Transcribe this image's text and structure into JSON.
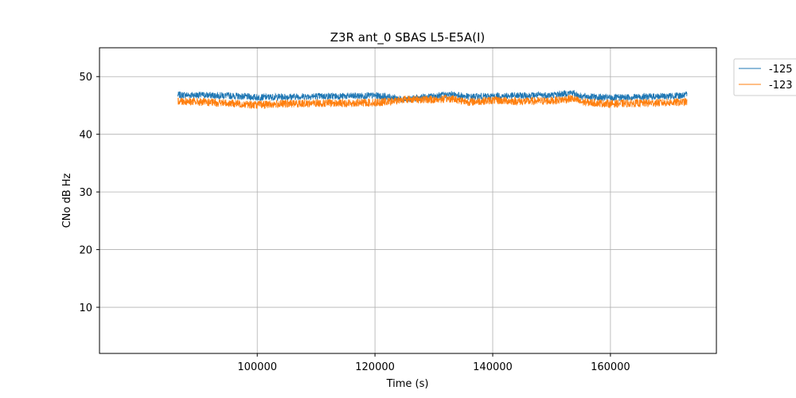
{
  "chart_data": {
    "type": "line",
    "title": "Z3R ant_0 SBAS L5-E5A(I)",
    "xlabel": "Time (s)",
    "ylabel": "CNo dB Hz",
    "xlim": [
      73200,
      178000
    ],
    "ylim": [
      2,
      55
    ],
    "x_ticks": [
      100000,
      120000,
      140000,
      160000
    ],
    "y_ticks": [
      10,
      20,
      30,
      40,
      50
    ],
    "grid": true,
    "legend_position": "outside-top-right",
    "series": [
      {
        "name": "-125",
        "color": "#1f77b4",
        "noise_band": 1.2,
        "x": [
          86500,
          90000,
          95000,
          100000,
          105000,
          110000,
          115000,
          120000,
          123000,
          125000,
          130000,
          133000,
          136000,
          140000,
          145000,
          150000,
          153500,
          155000,
          160000,
          165000,
          170000,
          173000
        ],
        "y": [
          46.8,
          46.8,
          46.7,
          46.4,
          46.5,
          46.6,
          46.6,
          46.7,
          46.4,
          46.0,
          46.6,
          46.9,
          46.5,
          46.6,
          46.7,
          46.8,
          47.2,
          46.6,
          46.3,
          46.5,
          46.6,
          46.8
        ]
      },
      {
        "name": "-123",
        "color": "#ff7f0e",
        "noise_band": 1.4,
        "x": [
          86500,
          90000,
          95000,
          100000,
          105000,
          110000,
          115000,
          120000,
          123000,
          125000,
          130000,
          133000,
          136000,
          140000,
          145000,
          150000,
          153500,
          155000,
          160000,
          165000,
          170000,
          173000
        ],
        "y": [
          45.8,
          45.6,
          45.4,
          45.1,
          45.3,
          45.4,
          45.4,
          45.5,
          45.7,
          46.1,
          46.0,
          46.2,
          45.6,
          45.9,
          45.7,
          45.8,
          46.2,
          45.6,
          45.3,
          45.4,
          45.5,
          45.6
        ]
      }
    ]
  }
}
